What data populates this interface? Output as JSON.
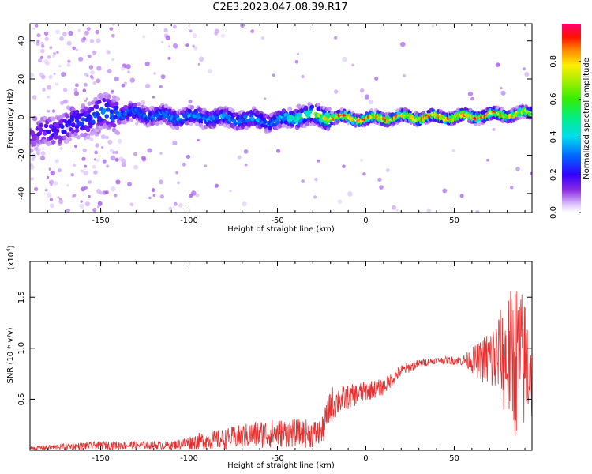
{
  "page_title": "C2E3.2023.047.08.39.R17",
  "colors": {
    "spectrum_low": "#e6d6ff",
    "spectrum_mid": "#6a00ff",
    "spectrum_high": "#ff0000",
    "snr_line": "#e83030",
    "axis": "#000000"
  },
  "chart_data": [
    {
      "type": "heatmap",
      "title": "C2E3.2023.047.08.39.R17",
      "xlabel": "Height of straight line (km)",
      "ylabel": "Frequency (Hz)",
      "xlim": [
        -190,
        94
      ],
      "ylim": [
        -50,
        49
      ],
      "x_ticks": [
        -150,
        -100,
        -50,
        0,
        50
      ],
      "y_ticks": [
        -40,
        -20,
        0,
        20,
        40
      ],
      "colorbar": {
        "label": "Normalized spectral amplitude",
        "range": [
          0,
          1
        ],
        "ticks": [
          "0.0",
          "0.2",
          "0.4",
          "0.6",
          "0.8"
        ],
        "colormap": "rainbow"
      },
      "ridge_frequency_hz": [
        {
          "x": -190,
          "y": -10
        },
        {
          "x": -170,
          "y": -5
        },
        {
          "x": -150,
          "y": 2
        },
        {
          "x": -130,
          "y": 2
        },
        {
          "x": -110,
          "y": 0
        },
        {
          "x": -90,
          "y": 0
        },
        {
          "x": -70,
          "y": -1
        },
        {
          "x": -50,
          "y": -2
        },
        {
          "x": -35,
          "y": 1
        },
        {
          "x": -20,
          "y": 0
        },
        {
          "x": 0,
          "y": -1
        },
        {
          "x": 20,
          "y": 0
        },
        {
          "x": 50,
          "y": 0
        },
        {
          "x": 70,
          "y": 1
        },
        {
          "x": 94,
          "y": 2
        }
      ],
      "ridge_peak_amplitude": [
        {
          "x": -190,
          "y": 0.15
        },
        {
          "x": -150,
          "y": 0.3
        },
        {
          "x": -100,
          "y": 0.35
        },
        {
          "x": -50,
          "y": 0.35
        },
        {
          "x": -25,
          "y": 0.7
        },
        {
          "x": -20,
          "y": 0.95
        },
        {
          "x": 0,
          "y": 0.95
        },
        {
          "x": 20,
          "y": 0.9
        },
        {
          "x": 60,
          "y": 0.95
        },
        {
          "x": 94,
          "y": 0.75
        }
      ]
    },
    {
      "type": "line",
      "xlabel": "Height of straight line (km)",
      "ylabel": "SNR (10 * v/v)",
      "y_multiplier": "(x10",
      "y_multiplier_exp": "4",
      "y_multiplier_close": ")",
      "xlim": [
        -190,
        94
      ],
      "ylim": [
        0,
        1.85
      ],
      "x_ticks": [
        -150,
        -100,
        -50,
        0,
        50
      ],
      "y_ticks": [
        "0.5",
        "1.0",
        "1.5"
      ],
      "series": [
        {
          "color": "#e83030",
          "envelope_mean": [
            {
              "x": -190,
              "y": 0.02
            },
            {
              "x": -150,
              "y": 0.05
            },
            {
              "x": -110,
              "y": 0.05
            },
            {
              "x": -95,
              "y": 0.09
            },
            {
              "x": -80,
              "y": 0.11
            },
            {
              "x": -60,
              "y": 0.16
            },
            {
              "x": -45,
              "y": 0.17
            },
            {
              "x": -25,
              "y": 0.16
            },
            {
              "x": -20,
              "y": 0.45
            },
            {
              "x": -10,
              "y": 0.52
            },
            {
              "x": 0,
              "y": 0.58
            },
            {
              "x": 10,
              "y": 0.62
            },
            {
              "x": 20,
              "y": 0.78
            },
            {
              "x": 30,
              "y": 0.85
            },
            {
              "x": 40,
              "y": 0.88
            },
            {
              "x": 55,
              "y": 0.88
            },
            {
              "x": 65,
              "y": 0.88
            },
            {
              "x": 75,
              "y": 0.9
            },
            {
              "x": 85,
              "y": 0.9
            },
            {
              "x": 94,
              "y": 0.8
            }
          ],
          "envelope_spread": [
            {
              "x": -190,
              "y": 0.02
            },
            {
              "x": -150,
              "y": 0.04
            },
            {
              "x": -110,
              "y": 0.04
            },
            {
              "x": -95,
              "y": 0.08
            },
            {
              "x": -80,
              "y": 0.1
            },
            {
              "x": -60,
              "y": 0.14
            },
            {
              "x": -45,
              "y": 0.14
            },
            {
              "x": -25,
              "y": 0.14
            },
            {
              "x": -20,
              "y": 0.18
            },
            {
              "x": -10,
              "y": 0.12
            },
            {
              "x": 0,
              "y": 0.1
            },
            {
              "x": 10,
              "y": 0.08
            },
            {
              "x": 20,
              "y": 0.06
            },
            {
              "x": 30,
              "y": 0.04
            },
            {
              "x": 40,
              "y": 0.03
            },
            {
              "x": 55,
              "y": 0.05
            },
            {
              "x": 65,
              "y": 0.2
            },
            {
              "x": 75,
              "y": 0.45
            },
            {
              "x": 85,
              "y": 0.8
            },
            {
              "x": 94,
              "y": 0.55
            }
          ]
        }
      ]
    }
  ]
}
